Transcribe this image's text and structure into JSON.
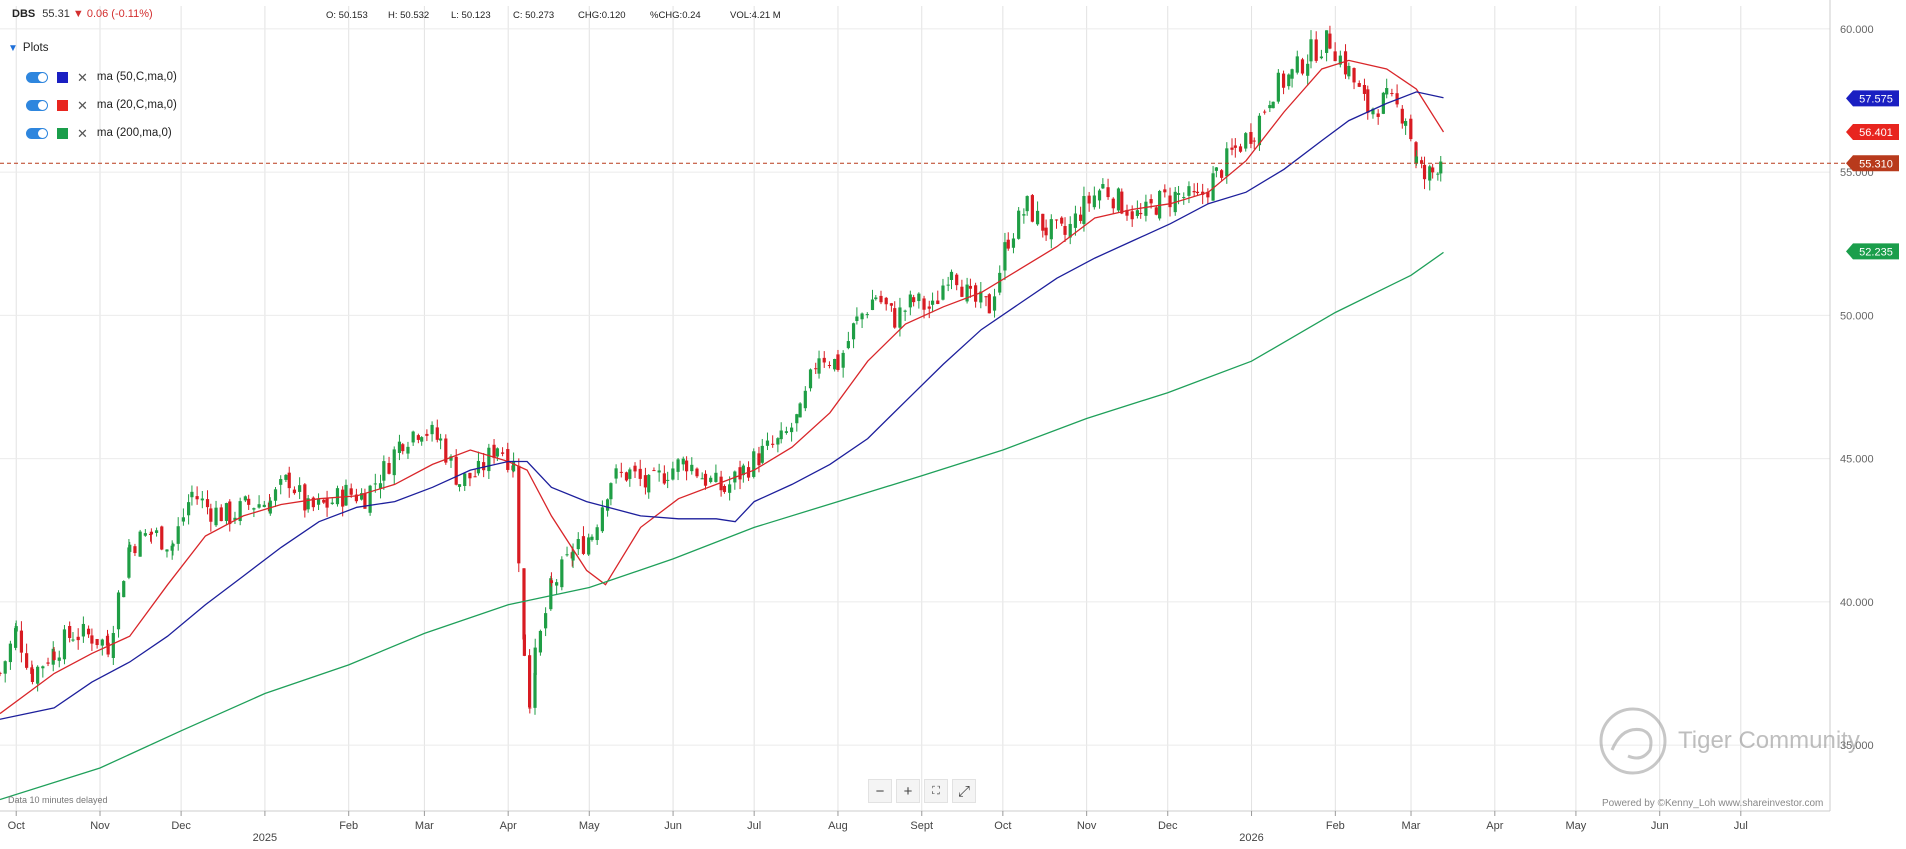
{
  "header": {
    "symbol": "DBS",
    "price": "55.31",
    "change": "0.06 (-0.11%)",
    "open": "O: 50.153",
    "high": "H: 50.532",
    "low": "L: 50.123",
    "close": "C: 50.273",
    "chg": "CHG:0.120",
    "pct_chg": "%CHG:0.24",
    "vol": "VOL:4.21 M"
  },
  "plots": {
    "title": "Plots",
    "items": [
      {
        "label": "ma (50,C,ma,0)",
        "color": "#1a1fc2"
      },
      {
        "label": "ma (20,C,ma,0)",
        "color": "#e8251f"
      },
      {
        "label": "ma (200,ma,0)",
        "color": "#1a9e4b"
      }
    ]
  },
  "footer": {
    "delayed": "Data 10 minutes delayed",
    "powered": "Powered by ©Kenny_Loh www.shareinvestor.com",
    "watermark": "Tiger Community"
  },
  "colors": {
    "up": "#1f9e45",
    "down": "#d81b22",
    "ma20": "#d9262a",
    "ma50": "#1d1f9c",
    "ma200": "#1fa05a",
    "last": "#b83a1c"
  },
  "chart_data": {
    "type": "line",
    "title": "DBS",
    "x_ticks": [
      "Oct",
      "Nov",
      "Dec",
      "2025",
      "Feb",
      "Mar",
      "Apr",
      "May",
      "Jun",
      "Jul",
      "Aug",
      "Sept",
      "Oct",
      "Nov",
      "Dec",
      "2026",
      "Feb",
      "Mar",
      "Apr",
      "May",
      "Jun",
      "Jul"
    ],
    "y_ticks": [
      "60.000",
      "55.000",
      "50.000",
      "45.000",
      "40.000",
      "35.000"
    ],
    "ylim": [
      32.7,
      60.8
    ],
    "grid": true,
    "last_price": 55.31,
    "price_labels": [
      {
        "text": "57.575",
        "value": 57.575,
        "color": "#1a1fc2"
      },
      {
        "text": "56.401",
        "value": 56.401,
        "color": "#e8251f"
      },
      {
        "text": "55.310",
        "value": 55.31,
        "color": "#b83a1c"
      },
      {
        "text": "52.235",
        "value": 52.235,
        "color": "#1a9e4b"
      }
    ],
    "price_path": [
      [
        "2024-09-25",
        37.5
      ],
      [
        "2024-10-01",
        39.0
      ],
      [
        "2024-10-07",
        37.5
      ],
      [
        "2024-10-15",
        38.3
      ],
      [
        "2024-10-22",
        38.9
      ],
      [
        "2024-10-29",
        38.8
      ],
      [
        "2024-11-04",
        38.5
      ],
      [
        "2024-11-12",
        42.0
      ],
      [
        "2024-11-20",
        42.4
      ],
      [
        "2024-11-28",
        42.0
      ],
      [
        "2024-12-05",
        43.8
      ],
      [
        "2024-12-12",
        43.2
      ],
      [
        "2024-12-19",
        43.0
      ],
      [
        "2024-12-26",
        43.4
      ],
      [
        "2025-01-03",
        43.5
      ],
      [
        "2025-01-10",
        44.3
      ],
      [
        "2025-01-17",
        43.2
      ],
      [
        "2025-01-24",
        43.4
      ],
      [
        "2025-01-31",
        43.8
      ],
      [
        "2025-02-07",
        43.7
      ],
      [
        "2025-02-14",
        44.6
      ],
      [
        "2025-02-21",
        45.7
      ],
      [
        "2025-02-28",
        46.1
      ],
      [
        "2025-03-07",
        45.6
      ],
      [
        "2025-03-14",
        44.2
      ],
      [
        "2025-03-21",
        44.5
      ],
      [
        "2025-03-28",
        45.5
      ],
      [
        "2025-04-03",
        44.8
      ],
      [
        "2025-04-07",
        38.3
      ],
      [
        "2025-04-09",
        36.5
      ],
      [
        "2025-04-11",
        38.0
      ],
      [
        "2025-04-17",
        40.5
      ],
      [
        "2025-04-25",
        41.7
      ],
      [
        "2025-05-02",
        42.4
      ],
      [
        "2025-05-09",
        44.3
      ],
      [
        "2025-05-16",
        44.5
      ],
      [
        "2025-05-23",
        44.0
      ],
      [
        "2025-05-30",
        44.6
      ],
      [
        "2025-06-06",
        44.9
      ],
      [
        "2025-06-13",
        44.3
      ],
      [
        "2025-06-20",
        43.9
      ],
      [
        "2025-06-27",
        44.6
      ],
      [
        "2025-07-04",
        45.2
      ],
      [
        "2025-07-11",
        45.6
      ],
      [
        "2025-07-18",
        46.5
      ],
      [
        "2025-07-25",
        48.7
      ],
      [
        "2025-08-01",
        48.3
      ],
      [
        "2025-08-08",
        49.8
      ],
      [
        "2025-08-15",
        50.7
      ],
      [
        "2025-08-22",
        49.9
      ],
      [
        "2025-08-29",
        50.5
      ],
      [
        "2025-09-05",
        50.2
      ],
      [
        "2025-09-12",
        51.8
      ],
      [
        "2025-09-19",
        50.5
      ],
      [
        "2025-09-26",
        50.3
      ],
      [
        "2025-10-03",
        52.7
      ],
      [
        "2025-10-10",
        53.8
      ],
      [
        "2025-10-17",
        53.0
      ],
      [
        "2025-10-24",
        52.8
      ],
      [
        "2025-10-31",
        53.8
      ],
      [
        "2025-11-07",
        54.5
      ],
      [
        "2025-11-14",
        53.9
      ],
      [
        "2025-11-21",
        53.4
      ],
      [
        "2025-11-28",
        54.0
      ],
      [
        "2025-12-05",
        54.2
      ],
      [
        "2025-12-12",
        54.0
      ],
      [
        "2025-12-19",
        54.9
      ],
      [
        "2025-12-26",
        55.8
      ],
      [
        "2026-01-02",
        56.5
      ],
      [
        "2026-01-09",
        57.9
      ],
      [
        "2026-01-16",
        58.4
      ],
      [
        "2026-01-23",
        59.2
      ],
      [
        "2026-01-30",
        59.6
      ],
      [
        "2026-02-06",
        58.5
      ],
      [
        "2026-02-13",
        57.2
      ],
      [
        "2026-02-20",
        57.5
      ],
      [
        "2026-02-27",
        57.0
      ],
      [
        "2026-03-03",
        55.4
      ],
      [
        "2026-03-06",
        54.8
      ],
      [
        "2026-03-09",
        55.0
      ],
      [
        "2026-03-12",
        55.5
      ],
      [
        "2026-03-13",
        55.31
      ]
    ],
    "series": [
      {
        "name": "ma (20,C,ma,0)",
        "values": [
          [
            "2024-09-25",
            36.1
          ],
          [
            "2024-10-15",
            37.5
          ],
          [
            "2024-10-29",
            38.2
          ],
          [
            "2024-11-12",
            38.8
          ],
          [
            "2024-11-26",
            40.6
          ],
          [
            "2024-12-10",
            42.3
          ],
          [
            "2024-12-24",
            43.0
          ],
          [
            "2025-01-07",
            43.4
          ],
          [
            "2025-01-21",
            43.6
          ],
          [
            "2025-02-04",
            43.7
          ],
          [
            "2025-02-18",
            44.1
          ],
          [
            "2025-03-04",
            44.8
          ],
          [
            "2025-03-18",
            45.3
          ],
          [
            "2025-04-01",
            44.9
          ],
          [
            "2025-04-08",
            44.6
          ],
          [
            "2025-04-17",
            43.0
          ],
          [
            "2025-04-30",
            41.1
          ],
          [
            "2025-05-07",
            40.6
          ],
          [
            "2025-05-20",
            42.6
          ],
          [
            "2025-06-03",
            43.6
          ],
          [
            "2025-06-17",
            44.1
          ],
          [
            "2025-07-01",
            44.6
          ],
          [
            "2025-07-15",
            45.4
          ],
          [
            "2025-07-29",
            46.6
          ],
          [
            "2025-08-12",
            48.4
          ],
          [
            "2025-08-26",
            49.7
          ],
          [
            "2025-09-09",
            50.3
          ],
          [
            "2025-09-23",
            50.8
          ],
          [
            "2025-10-07",
            51.6
          ],
          [
            "2025-10-21",
            52.4
          ],
          [
            "2025-11-04",
            53.4
          ],
          [
            "2025-11-18",
            53.7
          ],
          [
            "2025-12-02",
            53.9
          ],
          [
            "2025-12-16",
            54.3
          ],
          [
            "2025-12-30",
            55.4
          ],
          [
            "2026-01-13",
            57.1
          ],
          [
            "2026-01-27",
            58.6
          ],
          [
            "2026-02-06",
            58.9
          ],
          [
            "2026-02-20",
            58.6
          ],
          [
            "2026-03-03",
            57.9
          ],
          [
            "2026-03-13",
            56.4
          ]
        ]
      },
      {
        "name": "ma (50,C,ma,0)",
        "values": [
          [
            "2024-09-25",
            35.9
          ],
          [
            "2024-10-15",
            36.3
          ],
          [
            "2024-10-29",
            37.2
          ],
          [
            "2024-11-12",
            37.9
          ],
          [
            "2024-11-26",
            38.8
          ],
          [
            "2024-12-10",
            39.9
          ],
          [
            "2024-12-24",
            40.9
          ],
          [
            "2025-01-07",
            41.9
          ],
          [
            "2025-01-21",
            42.8
          ],
          [
            "2025-02-04",
            43.3
          ],
          [
            "2025-02-18",
            43.5
          ],
          [
            "2025-03-04",
            44.0
          ],
          [
            "2025-03-18",
            44.6
          ],
          [
            "2025-04-01",
            44.9
          ],
          [
            "2025-04-08",
            44.9
          ],
          [
            "2025-04-17",
            44.0
          ],
          [
            "2025-04-30",
            43.5
          ],
          [
            "2025-05-20",
            43.0
          ],
          [
            "2025-06-03",
            42.9
          ],
          [
            "2025-06-17",
            42.9
          ],
          [
            "2025-06-24",
            42.8
          ],
          [
            "2025-07-01",
            43.5
          ],
          [
            "2025-07-15",
            44.1
          ],
          [
            "2025-07-29",
            44.8
          ],
          [
            "2025-08-12",
            45.7
          ],
          [
            "2025-08-26",
            47.0
          ],
          [
            "2025-09-09",
            48.3
          ],
          [
            "2025-09-23",
            49.5
          ],
          [
            "2025-10-07",
            50.4
          ],
          [
            "2025-10-21",
            51.3
          ],
          [
            "2025-11-04",
            52.0
          ],
          [
            "2025-11-18",
            52.6
          ],
          [
            "2025-12-02",
            53.2
          ],
          [
            "2025-12-16",
            53.9
          ],
          [
            "2025-12-30",
            54.3
          ],
          [
            "2026-01-13",
            55.1
          ],
          [
            "2026-01-27",
            56.1
          ],
          [
            "2026-02-06",
            56.8
          ],
          [
            "2026-02-20",
            57.4
          ],
          [
            "2026-03-03",
            57.8
          ],
          [
            "2026-03-13",
            57.6
          ]
        ]
      },
      {
        "name": "ma (200,ma,0)",
        "values": [
          [
            "2024-09-25",
            33.1
          ],
          [
            "2024-11-01",
            34.2
          ],
          [
            "2024-12-01",
            35.5
          ],
          [
            "2025-01-01",
            36.8
          ],
          [
            "2025-02-01",
            37.8
          ],
          [
            "2025-03-01",
            38.9
          ],
          [
            "2025-04-01",
            39.9
          ],
          [
            "2025-05-01",
            40.5
          ],
          [
            "2025-06-01",
            41.5
          ],
          [
            "2025-07-01",
            42.6
          ],
          [
            "2025-08-01",
            43.5
          ],
          [
            "2025-09-01",
            44.4
          ],
          [
            "2025-10-01",
            45.3
          ],
          [
            "2025-11-01",
            46.4
          ],
          [
            "2025-12-01",
            47.3
          ],
          [
            "2026-01-01",
            48.4
          ],
          [
            "2026-02-01",
            50.1
          ],
          [
            "2026-03-01",
            51.4
          ],
          [
            "2026-03-13",
            52.2
          ]
        ]
      }
    ]
  }
}
